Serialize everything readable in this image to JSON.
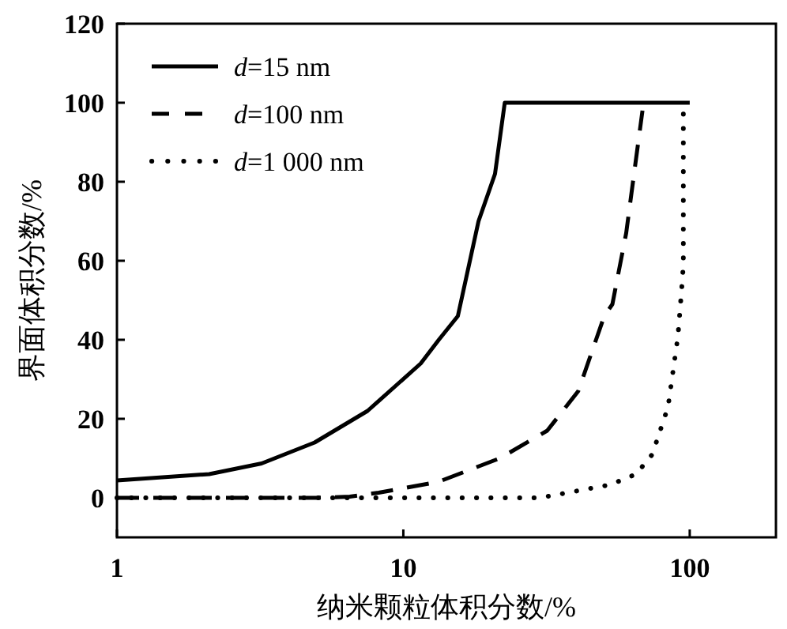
{
  "chart_data": {
    "type": "line",
    "xlabel": "纳米颗粒体积分数/%",
    "ylabel": "界面体积分数/%",
    "log": "x",
    "xlim": [
      1,
      200
    ],
    "ylim": [
      -10,
      120
    ],
    "xticks": [
      1,
      10,
      100
    ],
    "yticks": [
      0,
      20,
      40,
      60,
      80,
      100,
      120
    ],
    "grid": false,
    "legend": "top left",
    "series": [
      {
        "name": "d=15 nm",
        "color": "#000000",
        "line_style": "solid",
        "x": [
          1,
          2.1,
          3.2,
          4.9,
          7.5,
          11.5,
          13.3,
          15.5,
          18.3,
          20.9,
          22.6,
          100
        ],
        "values": [
          4.4,
          6,
          8.7,
          14,
          22,
          34,
          40,
          46,
          70,
          82,
          100,
          100
        ]
      },
      {
        "name": "d=100 nm",
        "color": "#000000",
        "line_style": "dashed",
        "x": [
          1,
          5,
          6.5,
          8.2,
          13.2,
          21.7,
          31.8,
          40.8,
          50.3,
          53.7,
          60,
          65,
          68.4
        ],
        "values": [
          0,
          0,
          0.3,
          1.3,
          4,
          10,
          17,
          27,
          46,
          49,
          67,
          86,
          98
        ]
      },
      {
        "name": "d=1 000 nm",
        "color": "#000000",
        "line_style": "dotted",
        "x": [
          1,
          30,
          52.7,
          65,
          74,
          84,
          91,
          94,
          95,
          95
        ],
        "values": [
          0,
          0,
          3.3,
          6,
          11,
          23,
          41,
          54,
          59,
          99
        ]
      }
    ]
  }
}
